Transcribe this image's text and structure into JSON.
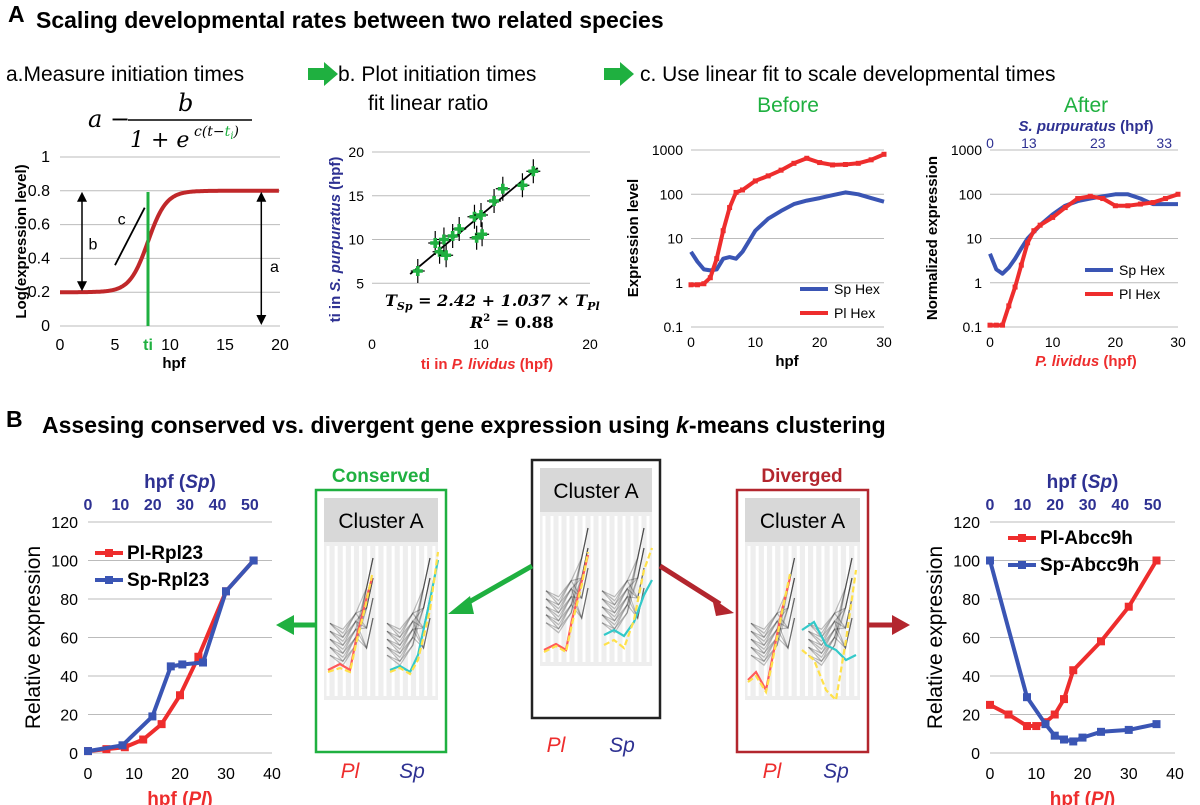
{
  "header_a": {
    "letter": "A",
    "title": "Scaling developmental rates between two related species"
  },
  "header_b": {
    "letter": "B",
    "title_pre": "Assesing conserved vs. divergent gene expression using ",
    "title_k": "k",
    "title_post": "-means clustering"
  },
  "steps": {
    "a": "a.Measure initiation times",
    "b1": "b. Plot initiation times",
    "b2": "fit linear ratio",
    "c": "c. Use linear fit to scale developmental times"
  },
  "formula": {
    "a": "a −",
    "num": "b",
    "den": "1 + e",
    "exp_pre": "c(t−",
    "exp_ti": "t",
    "exp_sub": "i",
    "exp_post": ")"
  },
  "colors": {
    "red": "#ee2d2d",
    "blue": "#3a55b4",
    "green": "#1fb040",
    "darkred": "#b3262e",
    "navy": "#2e3192",
    "logistic": "#c0282a"
  },
  "chart_data": [
    {
      "id": "logistic",
      "type": "line",
      "title": "",
      "xlabel": "hpf",
      "ylabel": "Log(expression level)",
      "xlim": [
        0,
        20
      ],
      "ylim": [
        0,
        1
      ],
      "xticks": [
        "0",
        "5",
        "10",
        "15",
        "20"
      ],
      "yticks": [
        "0",
        "0.2",
        "0.4",
        "0.6",
        "0.8",
        "1"
      ],
      "params": {
        "a": 0.8,
        "b": 0.6,
        "c": 1.2,
        "ti": 8
      },
      "annotations": {
        "a": "a",
        "b": "b",
        "c": "c",
        "ti": "ti"
      }
    },
    {
      "id": "scatter",
      "type": "scatter",
      "xlabel_pre": "ti in ",
      "xlabel_species": "P. lividus",
      "xlabel_post": " (hpf)",
      "ylabel_pre": "ti in ",
      "ylabel_species": "S. purpuratus",
      "ylabel_post": " (hpf)",
      "xlim": [
        0,
        20
      ],
      "ylim": [
        0,
        20
      ],
      "xticks": [
        "0",
        "10",
        "20"
      ],
      "yticks": [
        "5",
        "10",
        "15",
        "20"
      ],
      "fit": {
        "intercept": 2.42,
        "slope": 1.037,
        "r2": 0.88
      },
      "equation": "T_Sp = 2.42 + 1.037 × T_Pl",
      "eq_lhs": "T",
      "eq_lhs_sub": "Sp",
      "eq_mid": " = 2.42 + 1.037 × T",
      "eq_rhs_sub": "Pl",
      "r2_text": "R",
      "r2_val": " = 0.88",
      "points": [
        [
          4.2,
          6.4
        ],
        [
          5.8,
          9.6
        ],
        [
          6.2,
          8.6
        ],
        [
          6.6,
          10.0
        ],
        [
          6.8,
          8.2
        ],
        [
          7.4,
          10.4
        ],
        [
          8.0,
          11.2
        ],
        [
          9.4,
          12.6
        ],
        [
          9.6,
          10.2
        ],
        [
          10.0,
          12.8
        ],
        [
          10.1,
          10.6
        ],
        [
          11.2,
          14.4
        ],
        [
          12.0,
          15.8
        ],
        [
          13.8,
          16.2
        ],
        [
          14.8,
          17.8
        ]
      ]
    },
    {
      "id": "before",
      "type": "line",
      "title": "Before",
      "xlabel": "hpf",
      "ylabel": "Expression level",
      "yscale": "log",
      "xlim": [
        0,
        30
      ],
      "ylim": [
        0.1,
        1000
      ],
      "xticks": [
        "0",
        "10",
        "20",
        "30"
      ],
      "yticks": [
        "0.1",
        "1",
        "10",
        "100",
        "1000"
      ],
      "series": [
        {
          "name": "Sp Hex",
          "x": [
            0,
            1,
            2,
            3,
            4,
            5,
            6,
            7,
            8,
            10,
            12,
            14,
            16,
            18,
            20,
            22,
            24,
            26,
            28,
            30
          ],
          "y": [
            5,
            3,
            2,
            1.9,
            2,
            3.5,
            3.8,
            3.5,
            5,
            15,
            28,
            42,
            60,
            72,
            82,
            95,
            110,
            100,
            82,
            68
          ]
        },
        {
          "name": "Pl Hex",
          "x": [
            0,
            1,
            2,
            3,
            4,
            5,
            6,
            7,
            8,
            10,
            12,
            14,
            16,
            18,
            20,
            22,
            24,
            26,
            28,
            30
          ],
          "y": [
            0.9,
            0.9,
            0.95,
            1.3,
            3.5,
            15,
            50,
            110,
            125,
            200,
            260,
            350,
            500,
            650,
            520,
            460,
            470,
            500,
            600,
            800
          ]
        }
      ]
    },
    {
      "id": "after",
      "type": "line",
      "title": "After",
      "xlabel_species": "P. lividus",
      "xlabel_post": " (hpf)",
      "top_label_species": "S. purpuratus",
      "top_label_post": " (hpf)",
      "ylabel": "Normalized expression",
      "yscale": "log",
      "xlim": [
        0,
        30
      ],
      "ylim": [
        0.1,
        1000
      ],
      "xticks": [
        "0",
        "10",
        "20",
        "30"
      ],
      "top_ticks": [
        "0",
        "13",
        "23",
        "33"
      ],
      "yticks": [
        "0.1",
        "1",
        "10",
        "100",
        "1000"
      ],
      "series": [
        {
          "name": "Sp Hex",
          "x": [
            0,
            1,
            2,
            3,
            4,
            5,
            6,
            8,
            10,
            12,
            14,
            16,
            18,
            20,
            22,
            24,
            26,
            28,
            30
          ],
          "y": [
            4.5,
            2,
            1.6,
            2.2,
            3.5,
            6,
            10,
            20,
            35,
            55,
            70,
            80,
            90,
            100,
            100,
            80,
            60,
            60,
            60
          ]
        },
        {
          "name": "Pl Hex",
          "x": [
            0,
            1,
            2,
            3,
            4,
            5,
            6,
            7,
            8,
            10,
            12,
            14,
            16,
            18,
            20,
            22,
            24,
            26,
            28,
            30
          ],
          "y": [
            0.11,
            0.11,
            0.11,
            0.3,
            0.8,
            2.5,
            8,
            15,
            20,
            30,
            50,
            80,
            90,
            80,
            55,
            55,
            60,
            65,
            80,
            100
          ]
        }
      ]
    },
    {
      "id": "conserved",
      "type": "line",
      "xlabel_pre": "hpf (",
      "xlabel_species": "Pl",
      "xlabel_post": ")",
      "top_label_pre": "hpf (",
      "top_label_species": "Sp",
      "top_label_post": ")",
      "ylabel": "Relative expression",
      "xlim": [
        0,
        40
      ],
      "ylim": [
        0,
        120
      ],
      "xticks": [
        "0",
        "10",
        "20",
        "30",
        "40"
      ],
      "top_ticks": [
        "0",
        "10",
        "20",
        "30",
        "40",
        "50"
      ],
      "yticks": [
        "0",
        "20",
        "40",
        "60",
        "80",
        "100",
        "120"
      ],
      "series": [
        {
          "name": "Pl-Rpl23",
          "x": [
            0,
            4,
            8,
            12,
            16,
            20,
            24,
            30,
            36
          ],
          "y": [
            1,
            2,
            3,
            7,
            15,
            30,
            50,
            84,
            100
          ]
        },
        {
          "name": "Sp-Rpl23",
          "x": [
            0,
            7.5,
            14,
            18,
            20.5,
            25,
            30,
            36
          ],
          "y": [
            1,
            4,
            19,
            45,
            46,
            47,
            84,
            100
          ]
        }
      ]
    },
    {
      "id": "diverged",
      "type": "line",
      "xlabel_pre": "hpf (",
      "xlabel_species": "Pl",
      "xlabel_post": ")",
      "top_label_pre": "hpf (",
      "top_label_species": "Sp",
      "top_label_post": ")",
      "ylabel": "Relative expression",
      "xlim": [
        0,
        40
      ],
      "ylim": [
        0,
        120
      ],
      "xticks": [
        "0",
        "10",
        "20",
        "30",
        "40"
      ],
      "top_ticks": [
        "0",
        "10",
        "20",
        "30",
        "40",
        "50"
      ],
      "yticks": [
        "0",
        "20",
        "40",
        "60",
        "80",
        "100",
        "120"
      ],
      "series": [
        {
          "name": "Pl-Abcc9h",
          "x": [
            0,
            4,
            8,
            10,
            12,
            14,
            16,
            18,
            24,
            30,
            36
          ],
          "y": [
            25,
            20,
            14,
            14,
            16,
            20,
            28,
            43,
            58,
            76,
            100
          ]
        },
        {
          "name": "Sp-Abcc9h",
          "x": [
            0,
            8,
            12,
            14,
            16,
            18,
            20,
            24,
            30,
            36
          ],
          "y": [
            100,
            29,
            15,
            9,
            7,
            6,
            8,
            11,
            12,
            15
          ]
        }
      ]
    }
  ],
  "clusters": {
    "conserved_title": "Conserved",
    "diverged_title": "Diverged",
    "cluster_label": "Cluster A",
    "pl": "Pl",
    "sp": "Sp"
  }
}
